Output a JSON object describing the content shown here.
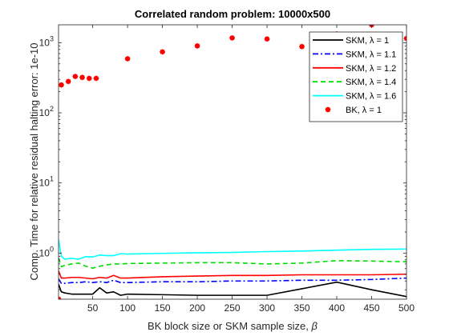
{
  "chart_data": {
    "type": "line",
    "title": "Correlated random problem: 10000x500",
    "xlabel": "BK block size or SKM sample size, ",
    "xlabel_symbol": "β",
    "ylabel": "Comp. Time for relative residual halting error: 1e-10",
    "yscale": "log",
    "xlim": [
      1,
      500
    ],
    "ylim": [
      0.22,
      1800
    ],
    "xticks": [
      50,
      100,
      150,
      200,
      250,
      300,
      350,
      400,
      450,
      500
    ],
    "xtick_labels": [
      "50",
      "100",
      "150",
      "200",
      "250",
      "300",
      "350",
      "400",
      "450",
      "500"
    ],
    "yticks": [
      1,
      10,
      100,
      1000
    ],
    "ytick_labels": [
      {
        "base": "10",
        "exp": "0"
      },
      {
        "base": "10",
        "exp": "1"
      },
      {
        "base": "10",
        "exp": "2"
      },
      {
        "base": "10",
        "exp": "3"
      }
    ],
    "grid": false,
    "legend_position": "top-right",
    "series": [
      {
        "name": "SKM, ",
        "lambda_text": "λ = 1",
        "color": "#000000",
        "dash": "solid",
        "marker": "none",
        "x": [
          1,
          5,
          10,
          20,
          30,
          40,
          50,
          60,
          70,
          80,
          90,
          100,
          150,
          200,
          250,
          300,
          350,
          400,
          450,
          500
        ],
        "y": [
          0.36,
          0.28,
          0.27,
          0.26,
          0.26,
          0.26,
          0.26,
          0.32,
          0.27,
          0.28,
          0.25,
          0.26,
          0.255,
          0.25,
          0.25,
          0.25,
          0.31,
          0.385,
          0.3,
          0.24
        ]
      },
      {
        "name": "SKM, ",
        "lambda_text": "λ = 1.1",
        "color": "#0000ff",
        "dash": "dashdot",
        "marker": "none",
        "x": [
          1,
          5,
          10,
          20,
          30,
          40,
          50,
          60,
          70,
          80,
          90,
          100,
          150,
          200,
          250,
          300,
          350,
          400,
          450,
          500
        ],
        "y": [
          0.43,
          0.37,
          0.37,
          0.38,
          0.38,
          0.39,
          0.38,
          0.39,
          0.38,
          0.41,
          0.38,
          0.38,
          0.39,
          0.39,
          0.4,
          0.4,
          0.41,
          0.41,
          0.42,
          0.44
        ]
      },
      {
        "name": "SKM, ",
        "lambda_text": "λ = 1.2",
        "color": "#ff0000",
        "dash": "solid",
        "marker": "none",
        "x": [
          1,
          5,
          10,
          20,
          30,
          40,
          50,
          60,
          70,
          80,
          90,
          100,
          150,
          200,
          250,
          300,
          350,
          400,
          450,
          500
        ],
        "y": [
          0.56,
          0.44,
          0.44,
          0.45,
          0.45,
          0.44,
          0.43,
          0.45,
          0.44,
          0.48,
          0.44,
          0.44,
          0.46,
          0.47,
          0.48,
          0.48,
          0.49,
          0.49,
          0.49,
          0.5
        ]
      },
      {
        "name": "SKM, ",
        "lambda_text": "λ = 1.4",
        "color": "#00dd00",
        "dash": "dashed",
        "marker": "none",
        "x": [
          1,
          5,
          10,
          20,
          30,
          40,
          50,
          60,
          70,
          80,
          90,
          100,
          150,
          200,
          250,
          300,
          350,
          400,
          450,
          500
        ],
        "y": [
          0.85,
          0.64,
          0.67,
          0.7,
          0.72,
          0.65,
          0.61,
          0.65,
          0.68,
          0.7,
          0.7,
          0.71,
          0.72,
          0.73,
          0.73,
          0.7,
          0.72,
          0.78,
          0.77,
          0.75
        ]
      },
      {
        "name": "SKM, ",
        "lambda_text": "λ = 1.6",
        "color": "#00ffff",
        "dash": "solid",
        "marker": "none",
        "x": [
          1,
          5,
          10,
          20,
          30,
          40,
          50,
          60,
          70,
          80,
          90,
          100,
          150,
          200,
          250,
          300,
          350,
          400,
          450,
          500
        ],
        "y": [
          1.55,
          0.9,
          0.82,
          0.84,
          0.82,
          0.89,
          0.88,
          0.94,
          0.92,
          0.92,
          0.98,
          0.97,
          0.99,
          1.01,
          1.02,
          1.05,
          1.07,
          1.1,
          1.13,
          1.14
        ]
      },
      {
        "name": "BK, ",
        "lambda_text": "λ = 1",
        "color": "#ff0000",
        "dash": "none",
        "marker": "asterisk",
        "x": [
          1,
          5,
          15,
          25,
          35,
          45,
          55,
          100,
          150,
          200,
          250,
          300,
          350,
          400,
          450,
          500
        ],
        "y": [
          0.22,
          250,
          280,
          330,
          320,
          310,
          310,
          590,
          740,
          900,
          1170,
          1130,
          880,
          1330,
          1800,
          1150
        ]
      }
    ]
  }
}
